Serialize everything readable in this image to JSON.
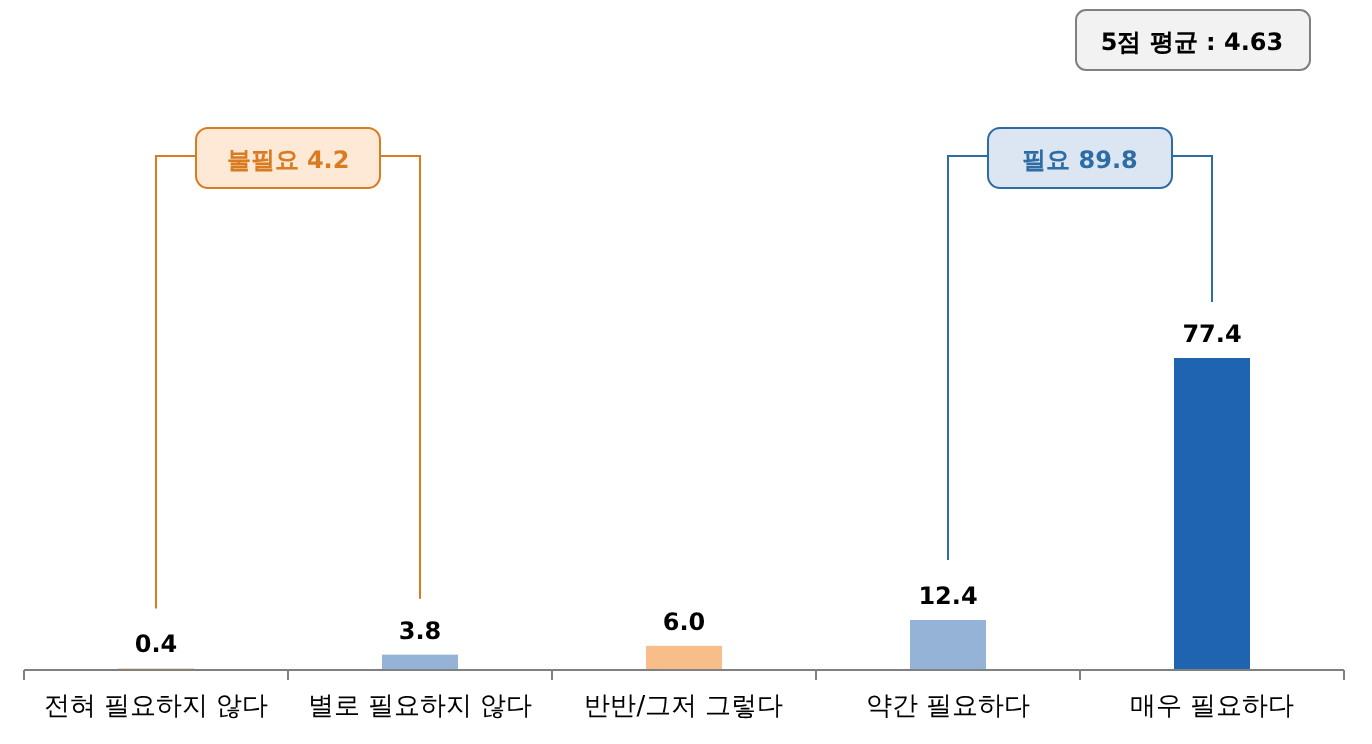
{
  "chart_data": {
    "type": "bar",
    "categories": [
      "전혀 필요하지 않다",
      "별로 필요하지 않다",
      "반반/그저 그렇다",
      "약간 필요하다",
      "매우 필요하다"
    ],
    "values": [
      0.4,
      3.8,
      6.0,
      12.4,
      77.4
    ],
    "colors": [
      "#f8be8a",
      "#95b3d7",
      "#f8be8a",
      "#95b3d7",
      "#1f64b0"
    ],
    "value_labels": [
      "0.4",
      "3.8",
      "6.0",
      "12.4",
      "77.4"
    ],
    "annotations": [
      "5점 평균 : 4.63",
      "불필요 4.2",
      "필요 89.8"
    ]
  }
}
